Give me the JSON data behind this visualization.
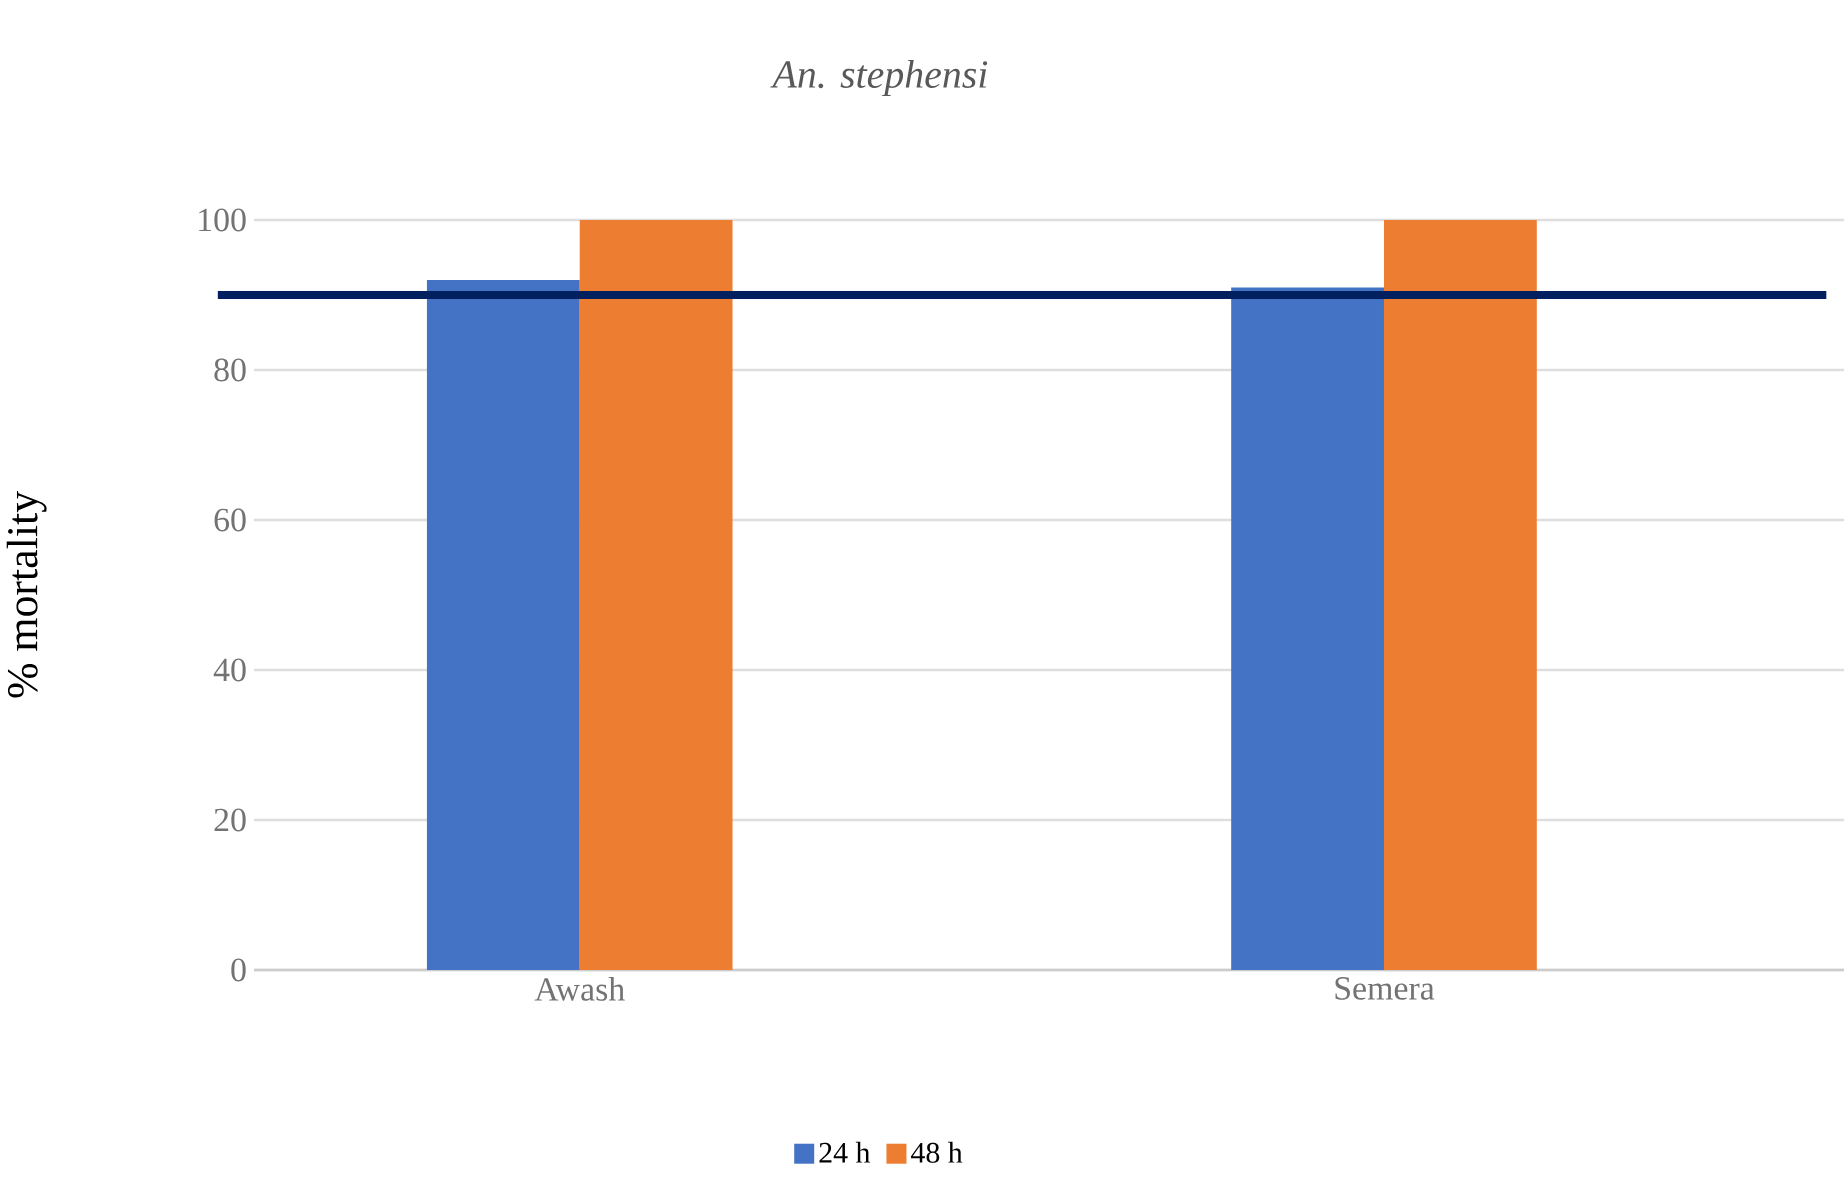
{
  "chart_data": {
    "type": "bar",
    "title": "An. stephensi",
    "ylabel": "% mortality",
    "categories": [
      "Awash",
      "Semera"
    ],
    "series": [
      {
        "name": "24 h",
        "color": "#4472c4",
        "values": [
          92,
          91
        ]
      },
      {
        "name": "48 h",
        "color": "#ed7d31",
        "values": [
          100,
          100
        ]
      }
    ],
    "ylim": [
      0,
      100
    ],
    "yticks": [
      0,
      20,
      40,
      60,
      80,
      100
    ],
    "grid": "y",
    "legend": "bottom",
    "ref_lines": [
      {
        "axis": "y",
        "value": 90,
        "color": "#002060"
      }
    ]
  }
}
